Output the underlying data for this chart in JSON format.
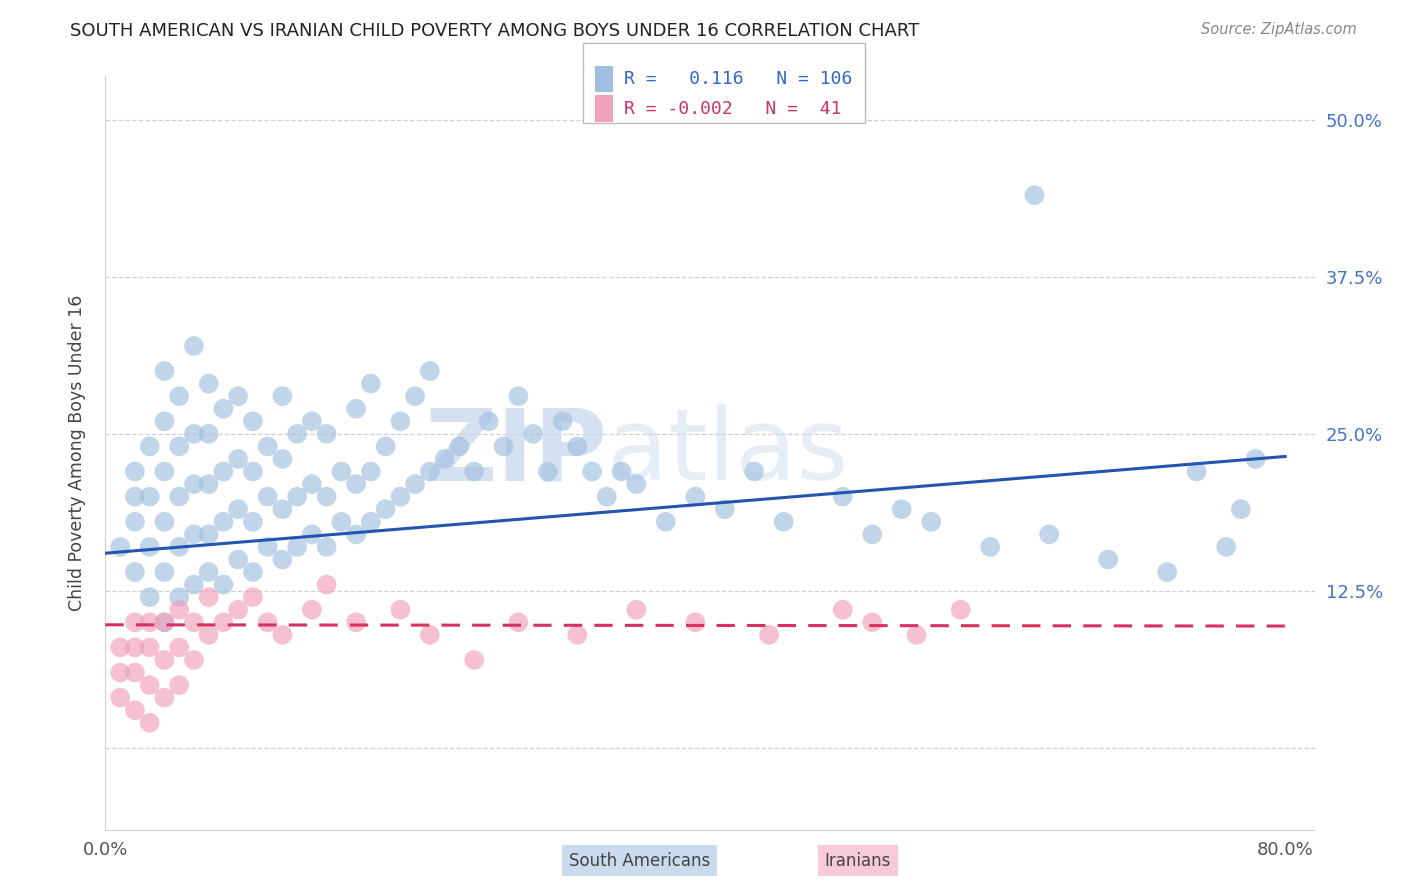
{
  "title": "SOUTH AMERICAN VS IRANIAN CHILD POVERTY AMONG BOYS UNDER 16 CORRELATION CHART",
  "source": "Source: ZipAtlas.com",
  "ylabel": "Child Poverty Among Boys Under 16",
  "xlim": [
    0.0,
    0.82
  ],
  "ylim": [
    -0.065,
    0.535
  ],
  "yticks": [
    0.0,
    0.125,
    0.25,
    0.375,
    0.5
  ],
  "ytick_labels": [
    "",
    "12.5%",
    "25.0%",
    "37.5%",
    "50.0%"
  ],
  "blue_R": 0.116,
  "blue_N": 106,
  "pink_R": -0.002,
  "pink_N": 41,
  "blue_color": "#a0bfe0",
  "pink_color": "#f0a0b8",
  "blue_line_color": "#2255b0",
  "pink_line_color": "#d83060",
  "watermark_zip": "ZIP",
  "watermark_atlas": "atlas",
  "grid_color": "#d0d0d0",
  "title_color": "#222222",
  "source_color": "#888888",
  "ytick_color": "#4472c4",
  "xtick_color": "#555555",
  "blue_x": [
    0.01,
    0.02,
    0.02,
    0.02,
    0.02,
    0.03,
    0.03,
    0.03,
    0.03,
    0.04,
    0.04,
    0.04,
    0.04,
    0.04,
    0.04,
    0.05,
    0.05,
    0.05,
    0.05,
    0.05,
    0.06,
    0.06,
    0.06,
    0.06,
    0.06,
    0.07,
    0.07,
    0.07,
    0.07,
    0.07,
    0.08,
    0.08,
    0.08,
    0.08,
    0.09,
    0.09,
    0.09,
    0.09,
    0.1,
    0.1,
    0.1,
    0.1,
    0.11,
    0.11,
    0.11,
    0.12,
    0.12,
    0.12,
    0.12,
    0.13,
    0.13,
    0.13,
    0.14,
    0.14,
    0.14,
    0.15,
    0.15,
    0.15,
    0.16,
    0.16,
    0.17,
    0.17,
    0.17,
    0.18,
    0.18,
    0.18,
    0.19,
    0.19,
    0.2,
    0.2,
    0.21,
    0.21,
    0.22,
    0.22,
    0.23,
    0.24,
    0.25,
    0.26,
    0.27,
    0.28,
    0.29,
    0.3,
    0.31,
    0.32,
    0.33,
    0.34,
    0.35,
    0.36,
    0.38,
    0.4,
    0.42,
    0.44,
    0.46,
    0.5,
    0.52,
    0.54,
    0.56,
    0.6,
    0.63,
    0.64,
    0.68,
    0.72,
    0.74,
    0.76,
    0.77,
    0.78
  ],
  "blue_y": [
    0.16,
    0.14,
    0.18,
    0.2,
    0.22,
    0.12,
    0.16,
    0.2,
    0.24,
    0.1,
    0.14,
    0.18,
    0.22,
    0.26,
    0.3,
    0.12,
    0.16,
    0.2,
    0.24,
    0.28,
    0.13,
    0.17,
    0.21,
    0.25,
    0.32,
    0.14,
    0.17,
    0.21,
    0.25,
    0.29,
    0.13,
    0.18,
    0.22,
    0.27,
    0.15,
    0.19,
    0.23,
    0.28,
    0.14,
    0.18,
    0.22,
    0.26,
    0.16,
    0.2,
    0.24,
    0.15,
    0.19,
    0.23,
    0.28,
    0.16,
    0.2,
    0.25,
    0.17,
    0.21,
    0.26,
    0.16,
    0.2,
    0.25,
    0.18,
    0.22,
    0.17,
    0.21,
    0.27,
    0.18,
    0.22,
    0.29,
    0.19,
    0.24,
    0.2,
    0.26,
    0.21,
    0.28,
    0.22,
    0.3,
    0.23,
    0.24,
    0.22,
    0.26,
    0.24,
    0.28,
    0.25,
    0.22,
    0.26,
    0.24,
    0.22,
    0.2,
    0.22,
    0.21,
    0.18,
    0.2,
    0.19,
    0.22,
    0.18,
    0.2,
    0.17,
    0.19,
    0.18,
    0.16,
    0.44,
    0.17,
    0.15,
    0.14,
    0.22,
    0.16,
    0.19,
    0.23
  ],
  "pink_x": [
    0.01,
    0.01,
    0.01,
    0.02,
    0.02,
    0.02,
    0.02,
    0.03,
    0.03,
    0.03,
    0.03,
    0.04,
    0.04,
    0.04,
    0.05,
    0.05,
    0.05,
    0.06,
    0.06,
    0.07,
    0.07,
    0.08,
    0.09,
    0.1,
    0.11,
    0.12,
    0.14,
    0.15,
    0.17,
    0.2,
    0.22,
    0.25,
    0.28,
    0.32,
    0.36,
    0.4,
    0.45,
    0.5,
    0.52,
    0.55,
    0.58
  ],
  "pink_y": [
    0.08,
    0.06,
    0.04,
    0.1,
    0.08,
    0.06,
    0.03,
    0.1,
    0.08,
    0.05,
    0.02,
    0.1,
    0.07,
    0.04,
    0.11,
    0.08,
    0.05,
    0.1,
    0.07,
    0.12,
    0.09,
    0.1,
    0.11,
    0.12,
    0.1,
    0.09,
    0.11,
    0.13,
    0.1,
    0.11,
    0.09,
    0.07,
    0.1,
    0.09,
    0.11,
    0.1,
    0.09,
    0.11,
    0.1,
    0.09,
    0.11
  ],
  "blue_line_x0": 0.0,
  "blue_line_y0": 0.155,
  "blue_line_x1": 0.8,
  "blue_line_y1": 0.232,
  "pink_line_x0": 0.0,
  "pink_line_y0": 0.098,
  "pink_line_x1": 0.8,
  "pink_line_y1": 0.097
}
